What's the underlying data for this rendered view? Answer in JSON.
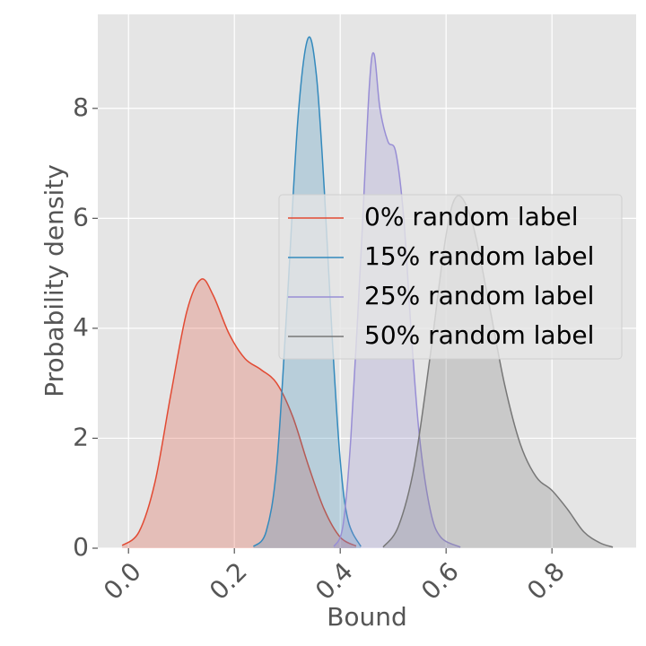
{
  "chart_data": {
    "type": "density",
    "xlabel": "Bound",
    "ylabel": "Probability density",
    "xlim": [
      -0.058,
      0.959
    ],
    "ylim": [
      0,
      9.71
    ],
    "xticks": [
      {
        "value": 0,
        "label": "0.0"
      },
      0.2,
      0.4,
      0.6,
      0.8
    ],
    "yticks": [
      0,
      2,
      4,
      6,
      8
    ],
    "grid": true,
    "legend": "center right",
    "series": [
      {
        "name": "0% random label",
        "color": "#E24A33",
        "x": [
          -0.012,
          0.02,
          0.05,
          0.08,
          0.11,
          0.137,
          0.16,
          0.19,
          0.22,
          0.25,
          0.28,
          0.31,
          0.34,
          0.37,
          0.4,
          0.43
        ],
        "values": [
          0.05,
          0.3,
          1.2,
          2.8,
          4.3,
          4.89,
          4.6,
          3.9,
          3.45,
          3.25,
          3.0,
          2.4,
          1.5,
          0.7,
          0.2,
          0.04
        ]
      },
      {
        "name": "15% random label",
        "color": "#348ABD",
        "x": [
          0.236,
          0.26,
          0.28,
          0.3,
          0.32,
          0.339,
          0.355,
          0.37,
          0.385,
          0.4,
          0.415,
          0.439
        ],
        "values": [
          0.03,
          0.3,
          1.5,
          4.5,
          7.8,
          9.27,
          8.6,
          6.5,
          3.8,
          1.6,
          0.5,
          0.03
        ]
      },
      {
        "name": "25% random label",
        "color": "#988ED5",
        "x": [
          0.388,
          0.405,
          0.42,
          0.44,
          0.455,
          0.464,
          0.475,
          0.49,
          0.505,
          0.52,
          0.535,
          0.55,
          0.57,
          0.59,
          0.627
        ],
        "values": [
          0.03,
          0.4,
          2.0,
          5.5,
          8.4,
          8.99,
          8.0,
          7.4,
          7.2,
          6.0,
          3.8,
          2.0,
          0.7,
          0.2,
          0.02
        ]
      },
      {
        "name": "50% random label",
        "color": "#777777",
        "x": [
          0.481,
          0.51,
          0.54,
          0.57,
          0.6,
          0.622,
          0.65,
          0.68,
          0.71,
          0.74,
          0.77,
          0.8,
          0.83,
          0.86,
          0.89,
          0.915
        ],
        "values": [
          0.02,
          0.4,
          1.5,
          3.5,
          5.7,
          6.41,
          5.9,
          4.5,
          3.0,
          1.9,
          1.3,
          1.05,
          0.7,
          0.3,
          0.1,
          0.02
        ]
      }
    ]
  }
}
